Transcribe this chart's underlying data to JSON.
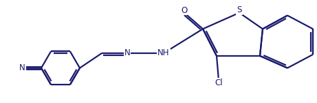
{
  "bg_color": "#ffffff",
  "line_color": "#1a1a6e",
  "line_width": 1.6,
  "font_size": 8.5,
  "figsize": [
    4.61,
    1.51
  ],
  "dpi": 100,
  "xlim": [
    0,
    10.2
  ],
  "ylim": [
    0,
    3.3
  ]
}
